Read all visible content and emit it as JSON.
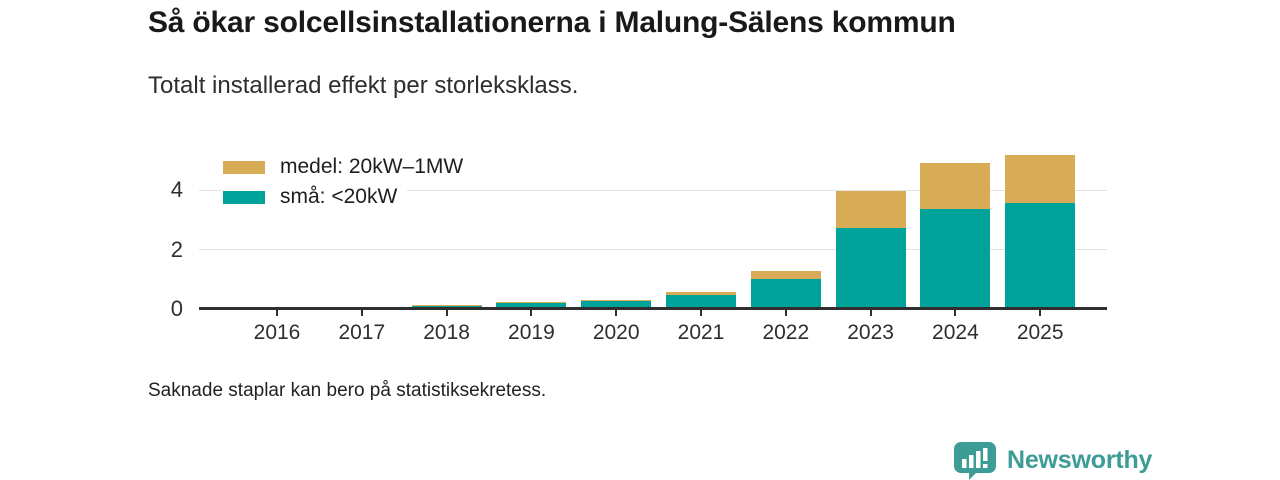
{
  "header": {
    "title": "Så ökar solcellsinstallationerna i Malung-Sälens kommun",
    "subtitle": "Totalt installerad effekt per storleksklass."
  },
  "chart_data": {
    "type": "bar",
    "stacked": true,
    "categories": [
      "2016",
      "2017",
      "2018",
      "2019",
      "2020",
      "2021",
      "2022",
      "2023",
      "2024",
      "2025"
    ],
    "series": [
      {
        "name": "medel: 20kW–1MW",
        "color": "#d8ab57",
        "values": [
          0,
          0,
          0.04,
          0.03,
          0.05,
          0.1,
          0.27,
          1.27,
          1.57,
          1.63
        ]
      },
      {
        "name": "små: <20kW",
        "color": "#00a39a",
        "values": [
          0,
          0,
          0.1,
          0.21,
          0.26,
          0.48,
          1.0,
          2.72,
          3.37,
          3.57
        ]
      }
    ],
    "missing_categories": [
      "2016",
      "2017"
    ],
    "title": "Så ökar solcellsinstallationerna i Malung-Sälens kommun",
    "xlabel": "",
    "ylabel": "",
    "yticks": [
      0,
      2,
      4
    ],
    "ylim": [
      0,
      5.7
    ],
    "grid": "horizontal",
    "legend_position": "top-left"
  },
  "footer": {
    "note": "Saknade staplar kan bero på statistiksekretess.",
    "logo_text": "Newsworthy"
  },
  "colors": {
    "teal": "#00a39a",
    "gold": "#d8ab57",
    "logo_teal": "#3d9c96",
    "axis": "#2f2f2f",
    "grid": "#e3e3e3"
  }
}
